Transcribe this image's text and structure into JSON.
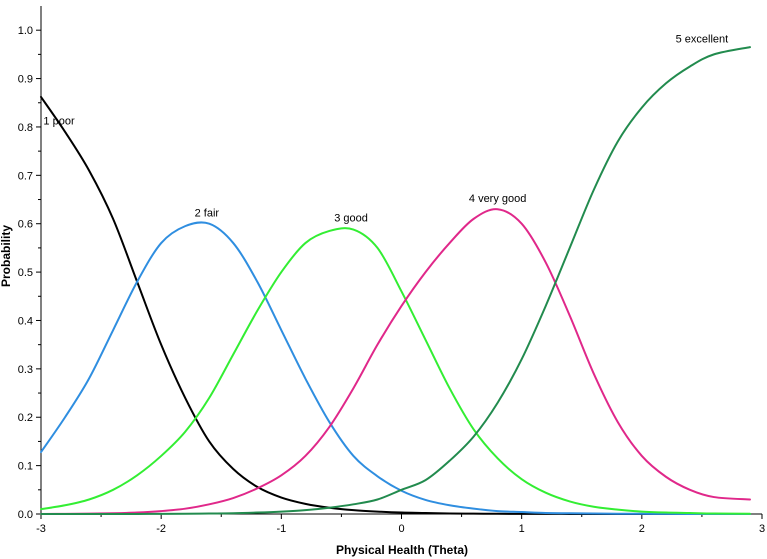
{
  "chart_data": {
    "type": "line",
    "title": "",
    "xlabel": "Physical Health (Theta)",
    "ylabel": "Probability",
    "xlim": [
      -3,
      3
    ],
    "ylim": [
      0,
      1.05
    ],
    "grid": false,
    "legend": "none",
    "x_ticks": [
      -3,
      -2,
      -1,
      0,
      1,
      2,
      3
    ],
    "y_ticks": [
      0.0,
      0.1,
      0.2,
      0.3,
      0.4,
      0.5,
      0.6,
      0.7,
      0.8,
      0.9,
      1.0
    ],
    "x_tick_labels": [
      "-3",
      "-2",
      "-1",
      "0",
      "1",
      "2",
      "3"
    ],
    "y_tick_labels": [
      "0.0",
      "0.1",
      "0.2",
      "0.3",
      "0.4",
      "0.5",
      "0.6",
      "0.7",
      "0.8",
      "0.9",
      "1.0"
    ],
    "x": [
      -3.0,
      -2.8,
      -2.6,
      -2.4,
      -2.2,
      -2.0,
      -1.8,
      -1.6,
      -1.4,
      -1.2,
      -1.0,
      -0.8,
      -0.6,
      -0.4,
      -0.2,
      0.0,
      0.2,
      0.4,
      0.6,
      0.8,
      1.0,
      1.2,
      1.4,
      1.6,
      1.8,
      2.0,
      2.2,
      2.4,
      2.6,
      2.9
    ],
    "series": [
      {
        "name": "1 poor",
        "color": "#000000",
        "values": [
          0.862,
          0.79,
          0.71,
          0.61,
          0.48,
          0.35,
          0.24,
          0.15,
          0.093,
          0.056,
          0.034,
          0.021,
          0.013,
          0.008,
          0.005,
          0.003,
          0.002,
          0.001,
          0.0007,
          0.0004,
          0.0003,
          0.0002,
          0.0001,
          0.0001,
          0.0,
          0.0,
          0.0,
          0.0,
          0.0,
          0.0
        ]
      },
      {
        "name": "2 fair",
        "color": "#2f8ee0",
        "values": [
          0.128,
          0.2,
          0.28,
          0.38,
          0.48,
          0.56,
          0.595,
          0.6,
          0.56,
          0.48,
          0.38,
          0.28,
          0.19,
          0.12,
          0.078,
          0.048,
          0.029,
          0.018,
          0.011,
          0.006,
          0.004,
          0.002,
          0.0015,
          0.001,
          0.0006,
          0.0004,
          0.0002,
          0.0001,
          0.0001,
          0.0
        ]
      },
      {
        "name": "3 good",
        "color": "#33ee33",
        "values": [
          0.01,
          0.018,
          0.03,
          0.05,
          0.08,
          0.12,
          0.17,
          0.24,
          0.33,
          0.42,
          0.5,
          0.56,
          0.585,
          0.588,
          0.55,
          0.46,
          0.36,
          0.26,
          0.175,
          0.115,
          0.072,
          0.044,
          0.026,
          0.015,
          0.009,
          0.005,
          0.003,
          0.002,
          0.001,
          0.0005
        ]
      },
      {
        "name": "4 very good",
        "color": "#e0288a",
        "values": [
          0.0001,
          0.0003,
          0.0007,
          0.0015,
          0.003,
          0.006,
          0.011,
          0.02,
          0.033,
          0.053,
          0.08,
          0.12,
          0.18,
          0.26,
          0.35,
          0.43,
          0.5,
          0.56,
          0.61,
          0.63,
          0.6,
          0.52,
          0.41,
          0.29,
          0.19,
          0.12,
          0.077,
          0.05,
          0.035,
          0.03
        ]
      },
      {
        "name": "5 excellent",
        "color": "#228b4e",
        "values": [
          0.0,
          0.0,
          0.0,
          0.0,
          0.0001,
          0.0002,
          0.0005,
          0.001,
          0.0015,
          0.003,
          0.005,
          0.008,
          0.013,
          0.02,
          0.03,
          0.05,
          0.07,
          0.11,
          0.16,
          0.23,
          0.32,
          0.43,
          0.55,
          0.67,
          0.77,
          0.84,
          0.89,
          0.925,
          0.95,
          0.965
        ]
      }
    ],
    "annotations": [
      {
        "text": "1 poor",
        "series": "1 poor",
        "x": -2.85,
        "y": 0.805
      },
      {
        "text": "2 fair",
        "series": "2 fair",
        "x": -1.62,
        "y": 0.615
      },
      {
        "text": "3 good",
        "series": "3 good",
        "x": -0.42,
        "y": 0.605
      },
      {
        "text": "4 very good",
        "series": "4 very good",
        "x": 0.8,
        "y": 0.645
      },
      {
        "text": "5 excellent",
        "series": "5 excellent",
        "x": 2.5,
        "y": 0.975
      }
    ]
  }
}
